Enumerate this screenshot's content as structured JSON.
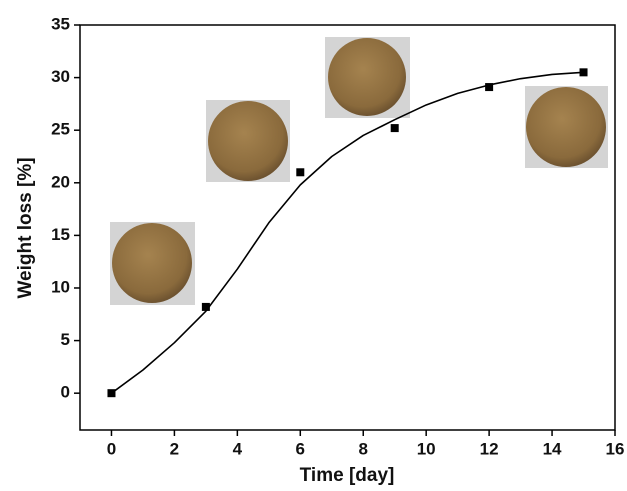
{
  "chart_data": {
    "type": "scatter",
    "x_label": "Time [day]",
    "y_label": "Weight loss [%]",
    "xlim": [
      -1,
      16
    ],
    "xticks": [
      0,
      2,
      4,
      6,
      8,
      10,
      12,
      14,
      16
    ],
    "ylim": [
      -3.5,
      35
    ],
    "yticks": [
      0,
      5,
      10,
      15,
      20,
      25,
      30,
      35
    ],
    "series": [
      {
        "marker": "square",
        "color": "#000000",
        "x": [
          0,
          3,
          6,
          9,
          12,
          15
        ],
        "values": [
          0,
          8.2,
          21,
          25.2,
          29.1,
          30.5
        ]
      },
      {
        "marker": "none",
        "color": "#000000",
        "x": [
          0,
          1,
          2,
          3,
          4,
          5,
          6,
          7,
          8,
          9,
          10,
          11,
          12,
          13,
          14,
          15
        ],
        "values": [
          0,
          2.2,
          4.8,
          7.8,
          11.8,
          16.2,
          19.8,
          22.5,
          24.5,
          26.0,
          27.4,
          28.5,
          29.3,
          29.9,
          30.3,
          30.5
        ]
      }
    ]
  }
}
